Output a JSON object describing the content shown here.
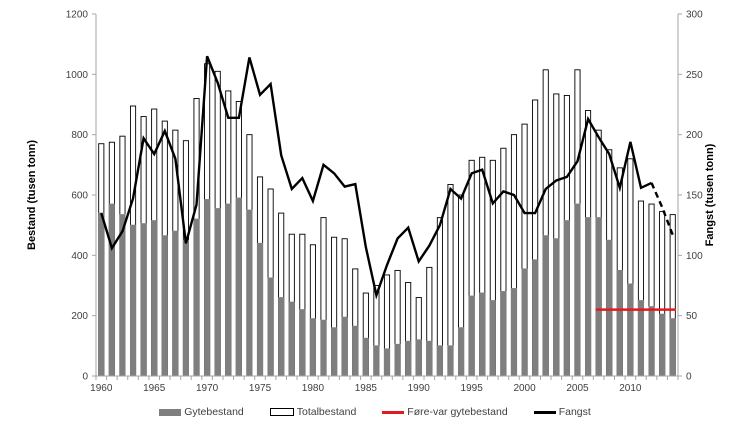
{
  "chart_data": {
    "type": "bar",
    "title": "",
    "xlabel": "",
    "ylabel": "Bestand (tusen tonn)",
    "y2label": "Fangst (tusen tonn)",
    "ylim": [
      0,
      1200
    ],
    "y2lim": [
      0,
      300
    ],
    "yticks": [
      0,
      200,
      400,
      600,
      800,
      1000,
      1200
    ],
    "y2ticks": [
      0,
      50,
      100,
      150,
      200,
      250,
      300
    ],
    "xticks": [
      1960,
      1965,
      1970,
      1975,
      1980,
      1985,
      1990,
      1995,
      2000,
      2005,
      2010
    ],
    "grid": false,
    "legend_position": "bottom",
    "categories": [
      1960,
      1961,
      1962,
      1963,
      1964,
      1965,
      1966,
      1967,
      1968,
      1969,
      1970,
      1971,
      1972,
      1973,
      1974,
      1975,
      1976,
      1977,
      1978,
      1979,
      1980,
      1981,
      1982,
      1983,
      1984,
      1985,
      1986,
      1987,
      1988,
      1989,
      1990,
      1991,
      1992,
      1993,
      1994,
      1995,
      1996,
      1997,
      1998,
      1999,
      2000,
      2001,
      2002,
      2003,
      2004,
      2005,
      2006,
      2007,
      2008,
      2009,
      2010,
      2011,
      2012,
      2013,
      2014
    ],
    "series": [
      {
        "name": "Gytebestand",
        "type": "bar",
        "axis": "left",
        "color": "#7f7f7f",
        "values": [
          540,
          570,
          535,
          500,
          505,
          515,
          465,
          480,
          450,
          520,
          585,
          555,
          570,
          590,
          550,
          440,
          325,
          260,
          245,
          220,
          190,
          185,
          160,
          195,
          165,
          125,
          100,
          90,
          105,
          115,
          120,
          115,
          100,
          100,
          160,
          265,
          275,
          250,
          280,
          290,
          355,
          385,
          465,
          455,
          515,
          570,
          525,
          525,
          450,
          350,
          305,
          250,
          230,
          205,
          190
        ]
      },
      {
        "name": "Totalbestand",
        "type": "bar",
        "axis": "left",
        "color": "#ffffff",
        "values": [
          770,
          775,
          795,
          895,
          860,
          885,
          845,
          815,
          780,
          920,
          1035,
          1010,
          945,
          910,
          800,
          660,
          620,
          540,
          470,
          470,
          435,
          525,
          460,
          455,
          355,
          275,
          300,
          335,
          350,
          310,
          260,
          360,
          525,
          635,
          600,
          715,
          725,
          715,
          755,
          800,
          835,
          915,
          1015,
          935,
          930,
          1015,
          880,
          815,
          750,
          690,
          720,
          580,
          570,
          545,
          535
        ]
      },
      {
        "name": "Føre-var gytebestand",
        "type": "line",
        "axis": "left",
        "color": "#e31a1c",
        "x": [
          2007,
          2014
        ],
        "values": [
          220,
          220
        ]
      },
      {
        "name": "Fangst",
        "type": "line",
        "axis": "right",
        "color": "#000000",
        "values": [
          135,
          106,
          120,
          147,
          197,
          184,
          203,
          180,
          110,
          142,
          265,
          243,
          214,
          214,
          264,
          233,
          242,
          183,
          155,
          164,
          145,
          175,
          168,
          157,
          159,
          107,
          67,
          92,
          114,
          123,
          95,
          108,
          125,
          155,
          147,
          168,
          171,
          143,
          153,
          150,
          135,
          135,
          155,
          162,
          165,
          178,
          213,
          198,
          184,
          156,
          194,
          156,
          160,
          140,
          117
        ],
        "dashed_from_index": 52
      }
    ]
  },
  "legend": {
    "items": [
      {
        "label": "Gytebestand"
      },
      {
        "label": "Totalbestand"
      },
      {
        "label": "Føre-var gytebestand"
      },
      {
        "label": "Fangst"
      }
    ]
  },
  "axes": {
    "left_title": "Bestand (tusen tonn)",
    "right_title": "Fangst (tusen tonn)"
  }
}
